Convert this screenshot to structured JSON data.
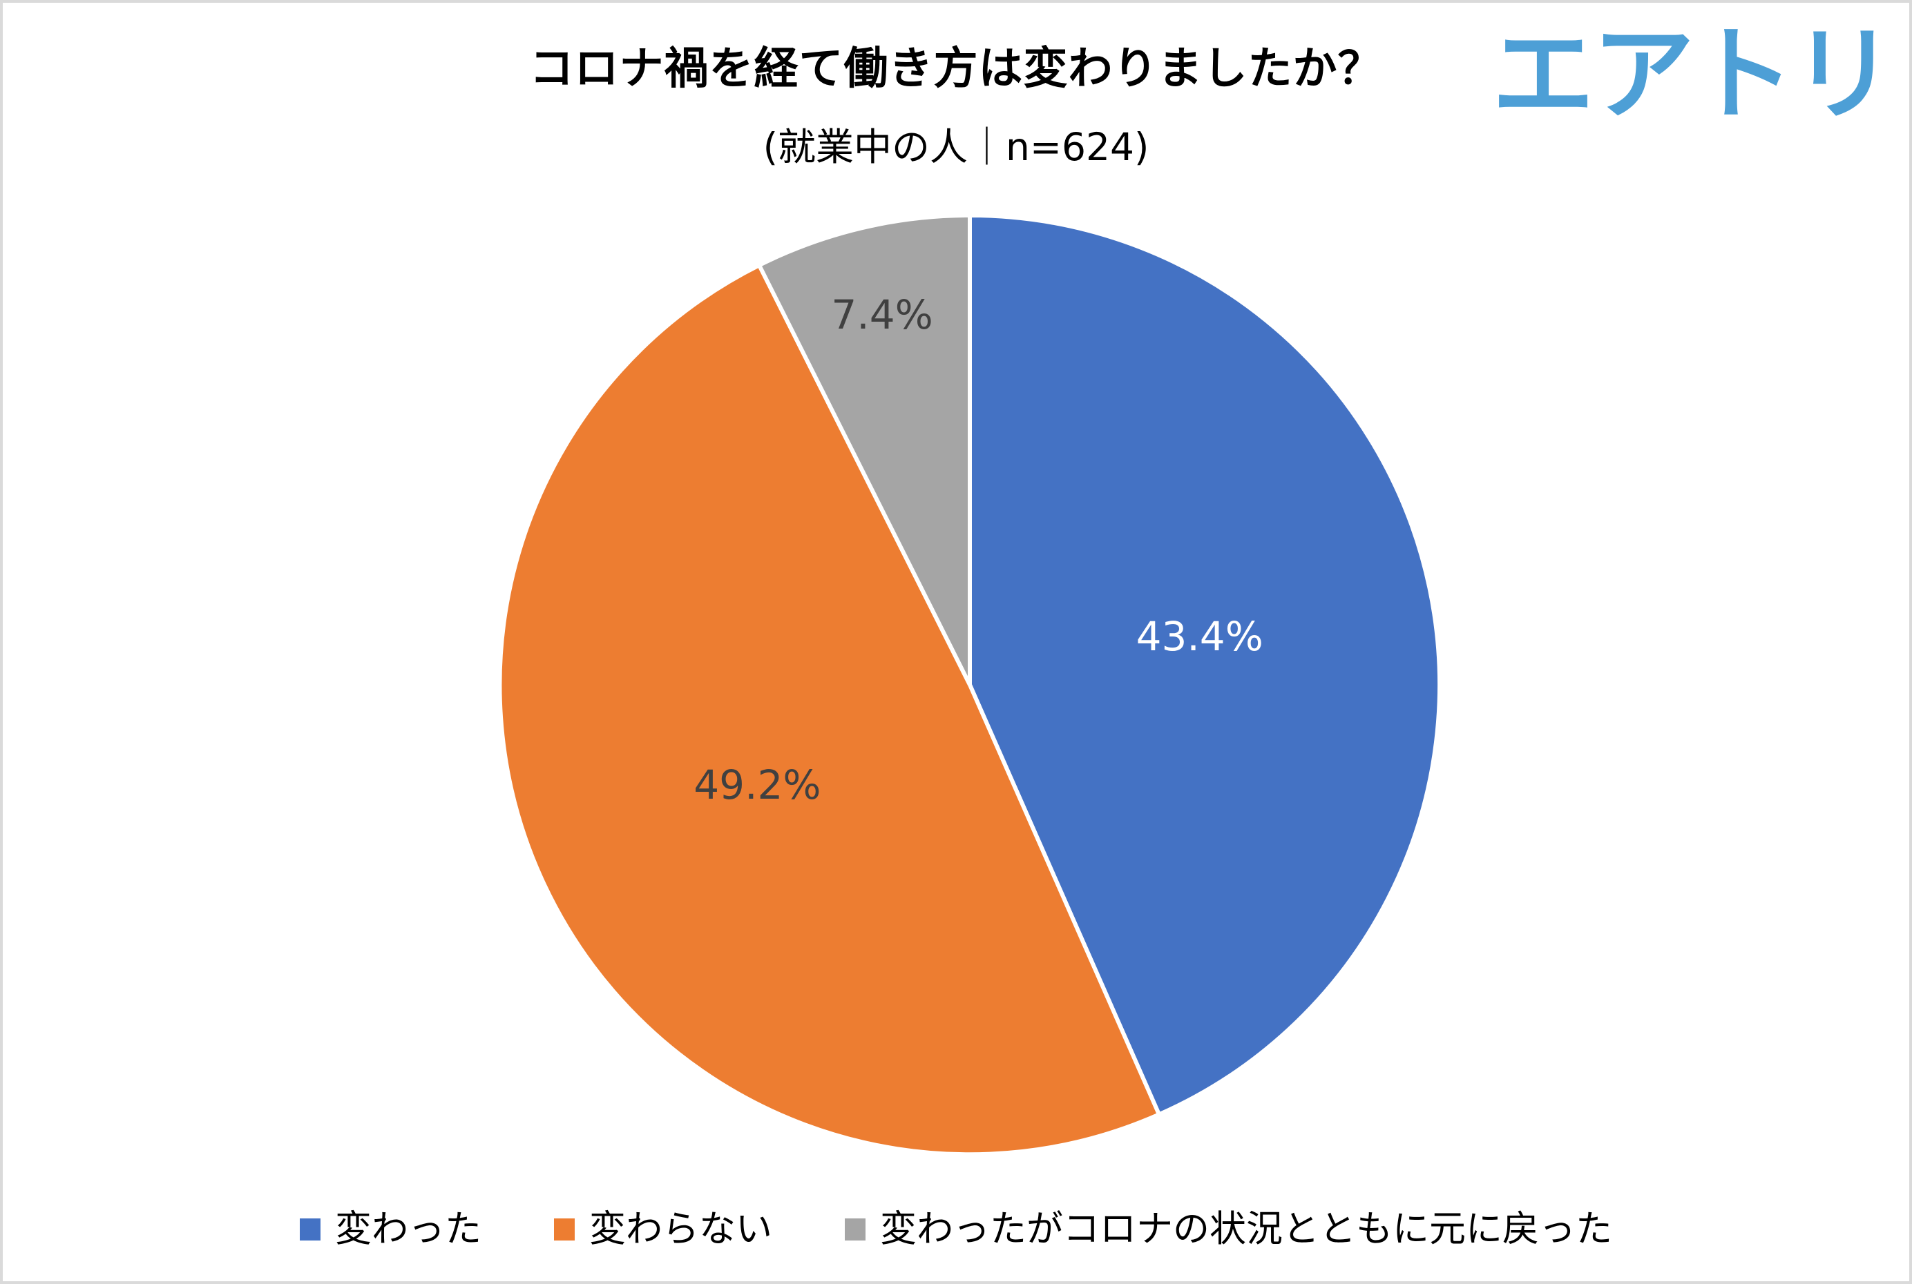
{
  "page": {
    "background": "#FFFFFF",
    "border_color": "#DADADA"
  },
  "logo": {
    "text": "エアトリ",
    "color": "#4D9FD6"
  },
  "chart_data": {
    "type": "pie",
    "title": "コロナ禍を経て働き方は変わりましたか？",
    "subtitle": "(就業中の人｜n=624)",
    "sample_size_label": "n=624",
    "categories": [
      "変わった",
      "変わらない",
      "変わったがコロナの状況とともに元に戻った"
    ],
    "values": [
      43.4,
      49.2,
      7.4
    ],
    "data_labels": [
      "43.4%",
      "49.2%",
      "7.4%"
    ],
    "colors": [
      "#4472C4",
      "#ED7D31",
      "#A5A5A5"
    ],
    "data_label_colors": [
      "#FFFFFF",
      "#404040",
      "#404040"
    ],
    "slice_border_color": "#FFFFFF",
    "start_angle_deg": 0,
    "direction": "clockwise",
    "legend_position": "bottom",
    "grid": false
  }
}
